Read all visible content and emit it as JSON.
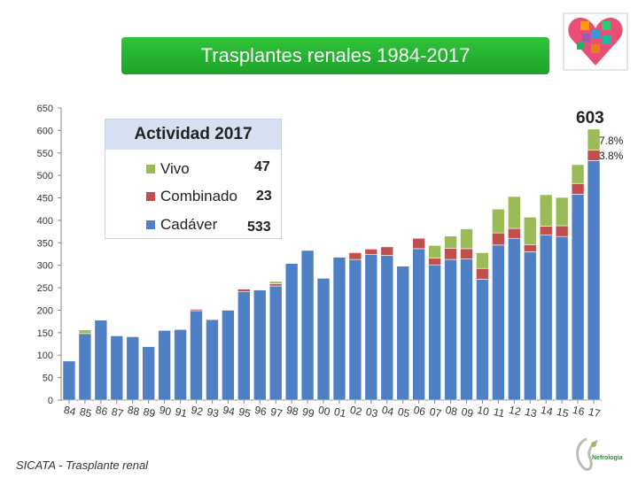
{
  "header": {
    "title": "Trasplantes renales  1984-2017"
  },
  "chart_data": {
    "type": "bar",
    "stacked": true,
    "categories": [
      "84",
      "85",
      "86",
      "87",
      "88",
      "89",
      "90",
      "91",
      "92",
      "93",
      "94",
      "95",
      "96",
      "97",
      "98",
      "99",
      "00",
      "01",
      "02",
      "03",
      "04",
      "05",
      "06",
      "07",
      "08",
      "09",
      "10",
      "11",
      "12",
      "13",
      "14",
      "15",
      "16",
      "17"
    ],
    "series": [
      {
        "name": "Cadáver",
        "color": "#4f7fc4",
        "values": [
          87,
          148,
          178,
          143,
          141,
          119,
          155,
          157,
          199,
          179,
          200,
          241,
          245,
          254,
          304,
          333,
          271,
          318,
          313,
          324,
          322,
          298,
          337,
          301,
          313,
          314,
          269,
          345,
          360,
          330,
          367,
          364,
          458,
          533
        ]
      },
      {
        "name": "Combinado",
        "color": "#c0504d",
        "values": [
          0,
          0,
          0,
          0,
          0,
          0,
          0,
          0,
          3,
          0,
          0,
          6,
          0,
          5,
          0,
          0,
          0,
          0,
          15,
          12,
          19,
          0,
          23,
          15,
          25,
          23,
          24,
          27,
          22,
          16,
          20,
          24,
          24,
          23
        ]
      },
      {
        "name": "Vivo",
        "color": "#9bbb59",
        "values": [
          0,
          8,
          0,
          0,
          0,
          0,
          0,
          0,
          0,
          0,
          0,
          0,
          0,
          5,
          0,
          0,
          0,
          0,
          0,
          0,
          0,
          0,
          0,
          28,
          27,
          44,
          35,
          53,
          71,
          61,
          70,
          63,
          42,
          47
        ]
      }
    ],
    "ylim": [
      0,
      650
    ],
    "yticks": [
      0,
      50,
      100,
      150,
      200,
      250,
      300,
      350,
      400,
      450,
      500,
      550,
      600,
      650
    ],
    "grid": false,
    "activity": {
      "title": "Actividad 2017",
      "entries": [
        {
          "label": "Vivo",
          "value": "47"
        },
        {
          "label": "Combinado",
          "value": "23"
        },
        {
          "label": "Cadáver",
          "value": "533"
        }
      ]
    },
    "annotations": {
      "total": "603",
      "pct_vivo": "7.8%",
      "pct_combinado": "3.8%"
    }
  },
  "footer": {
    "source": "SICATA - Trasplante renal",
    "logo_text": "Nefrologia"
  }
}
